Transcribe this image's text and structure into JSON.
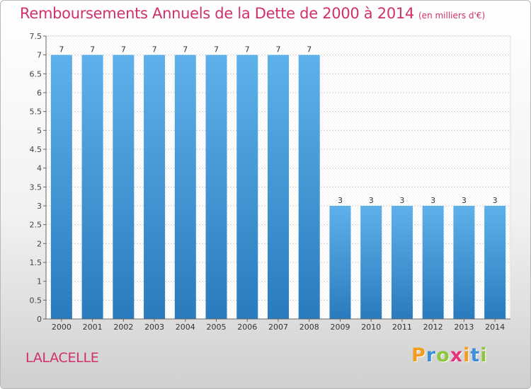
{
  "chart_data": {
    "type": "bar",
    "title": "Remboursements Annuels de la Dette de 2000 à 2014",
    "subtitle": "(en milliers d'€)",
    "xlabel": "",
    "ylabel": "",
    "categories": [
      "2000",
      "2001",
      "2002",
      "2003",
      "2004",
      "2005",
      "2006",
      "2007",
      "2008",
      "2009",
      "2010",
      "2011",
      "2012",
      "2013",
      "2014"
    ],
    "values": [
      7,
      7,
      7,
      7,
      7,
      7,
      7,
      7,
      7,
      3,
      3,
      3,
      3,
      3,
      3
    ],
    "ylim": [
      0,
      7.5
    ],
    "yticks": [
      0,
      0.5,
      1,
      1.5,
      2,
      2.5,
      3,
      3.5,
      4,
      4.5,
      5,
      5.5,
      6,
      6.5,
      7,
      7.5
    ],
    "ytick_labels": [
      "0",
      "0.5",
      "1",
      "1.5",
      "2",
      "2.5",
      "3",
      "3.5",
      "4",
      "4.5",
      "5",
      "5.5",
      "6",
      "6.5",
      "7",
      "7.5"
    ],
    "grid": true,
    "bar_color_top": "#5eb1ea",
    "bar_color_bottom": "#2a7bbd"
  },
  "footer": {
    "commune": "LALACELLE",
    "brand_letters": [
      "P",
      "r",
      "o",
      "x",
      "i",
      "t",
      "i"
    ],
    "brand_colors": [
      "#f39c1f",
      "#3f8fd6",
      "#8cc63e",
      "#e3357a",
      "#f39c1f",
      "#3f8fd6",
      "#8cc63e"
    ]
  }
}
